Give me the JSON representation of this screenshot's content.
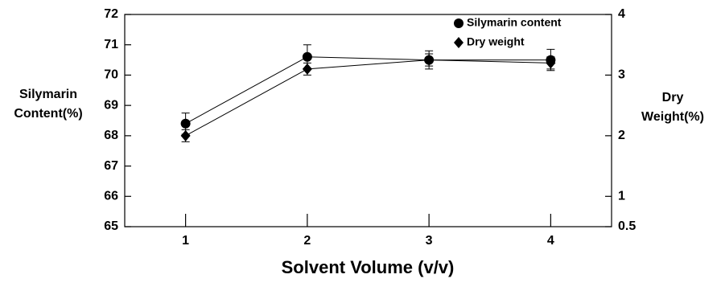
{
  "chart_data": {
    "type": "line",
    "xlabel": "Solvent Volume (v/v)",
    "ylabel": [
      "Silymarin",
      "Content(%)"
    ],
    "y2label": [
      "Dry",
      "Weight(%)"
    ],
    "x": [
      1,
      2,
      3,
      4
    ],
    "xlim": [
      0.5,
      4.5
    ],
    "xticks": [
      1,
      2,
      3,
      4
    ],
    "ylim": [
      65,
      72
    ],
    "yticks": [
      65,
      66,
      67,
      68,
      69,
      70,
      71,
      72
    ],
    "y2lim": [
      0.5,
      4
    ],
    "y2ticks": [
      0.5,
      1,
      2,
      3,
      4
    ],
    "legend": "upper right",
    "series": [
      {
        "name": "Silymarin content",
        "color": "#000000",
        "marker": "circle",
        "values": [
          68.4,
          70.6,
          70.5,
          70.5
        ],
        "errors": [
          0.35,
          0.4,
          0.3,
          0.35
        ]
      },
      {
        "name": "Dry weight",
        "color": "#000000",
        "marker": "diamond",
        "axis": "y2",
        "values": [
          2.0,
          3.1,
          3.25,
          3.2
        ],
        "errors": [
          0.1,
          0.1,
          0.1,
          0.1
        ]
      }
    ]
  }
}
